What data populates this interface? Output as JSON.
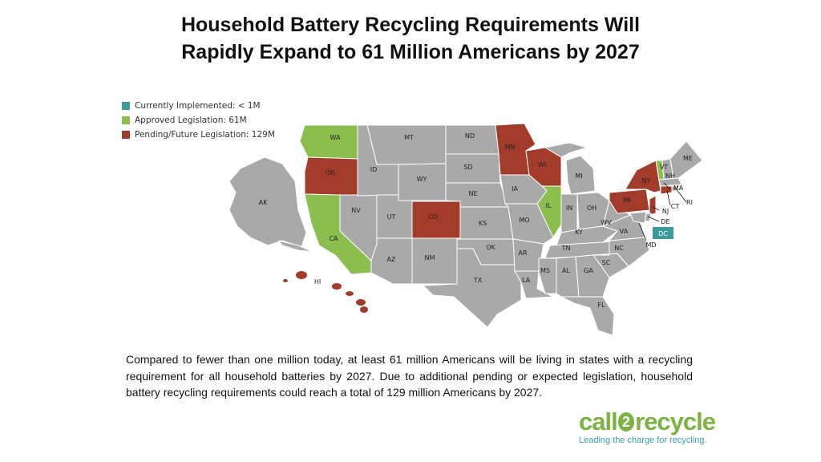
{
  "title": {
    "line1": "Household Battery Recycling Requirements Will",
    "line2": "Rapidly Expand to 61 Million Americans by 2027"
  },
  "colors": {
    "implemented": "#3d9a9b",
    "approved": "#8cbd4f",
    "pending": "#a23b2a",
    "none": "#a9a9a9"
  },
  "legend": [
    {
      "label": "Currently Implemented: < 1M",
      "color": "#3d9a9b"
    },
    {
      "label": "Approved Legislation: 61M",
      "color": "#8cbd4f"
    },
    {
      "label": "Pending/Future Legislation: 129M",
      "color": "#a23b2a"
    }
  ],
  "map": {
    "states": {
      "WA": "approved",
      "OR": "pending",
      "CA": "approved",
      "CO": "pending",
      "MN": "pending",
      "WI": "pending",
      "IL": "approved",
      "NY": "pending",
      "PA": "pending",
      "VT": "approved",
      "NJ": "pending",
      "CT": "pending",
      "DC": "implemented",
      "HI": "pending"
    },
    "labels": [
      "AK",
      "WA",
      "OR",
      "CA",
      "NV",
      "ID",
      "MT",
      "WY",
      "UT",
      "AZ",
      "CO",
      "NM",
      "ND",
      "SD",
      "NE",
      "KS",
      "OK",
      "TX",
      "MN",
      "IA",
      "MO",
      "AR",
      "LA",
      "WI",
      "IL",
      "MI",
      "IN",
      "OH",
      "KY",
      "TN",
      "MS",
      "AL",
      "GA",
      "FL",
      "SC",
      "NC",
      "VA",
      "WV",
      "PA",
      "NY",
      "VT",
      "NH",
      "ME",
      "MA",
      "RI",
      "CT",
      "NJ",
      "DE",
      "MD",
      "HI",
      "DC"
    ]
  },
  "description": "Compared to fewer than one million today, at least 61 million Americans will be living in states with a recycling requirement for all household batteries by 2027. Due to additional pending or expected legislation, household battery recycling requirements could reach a total of 129 million Americans by 2027.",
  "logo": {
    "word_before": "call",
    "word_mid": "2",
    "word_after": "recycle",
    "tagline": "Leading the charge for recycling."
  }
}
